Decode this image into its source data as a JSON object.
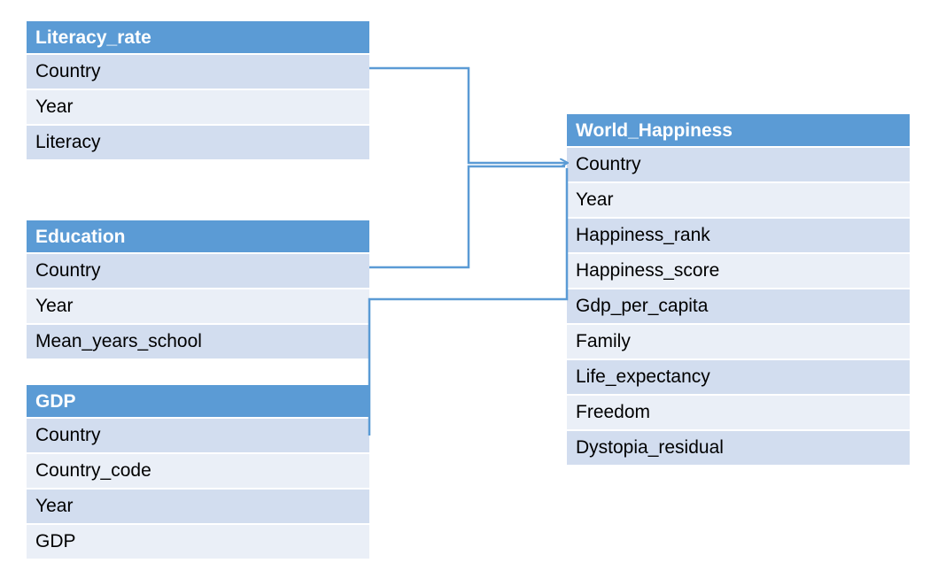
{
  "tables": {
    "literacy": {
      "title": "Literacy_rate",
      "fields": [
        "Country",
        "Year",
        "Literacy"
      ]
    },
    "education": {
      "title": "Education",
      "fields": [
        "Country",
        "Year",
        "Mean_years_school"
      ]
    },
    "gdp": {
      "title": "GDP",
      "fields": [
        "Country",
        "Country_code",
        "Year",
        "GDP"
      ]
    },
    "happiness": {
      "title": "World_Happiness",
      "fields": [
        "Country",
        "Year",
        "Happiness_rank",
        "Happiness_score",
        "Gdp_per_capita",
        "Family",
        "Life_expectancy",
        "Freedom",
        "Dystopia_residual"
      ]
    }
  },
  "colors": {
    "header": "#5b9bd5",
    "row_dark": "#d2ddef",
    "row_light": "#eaeff7",
    "connector": "#5b9bd5"
  }
}
